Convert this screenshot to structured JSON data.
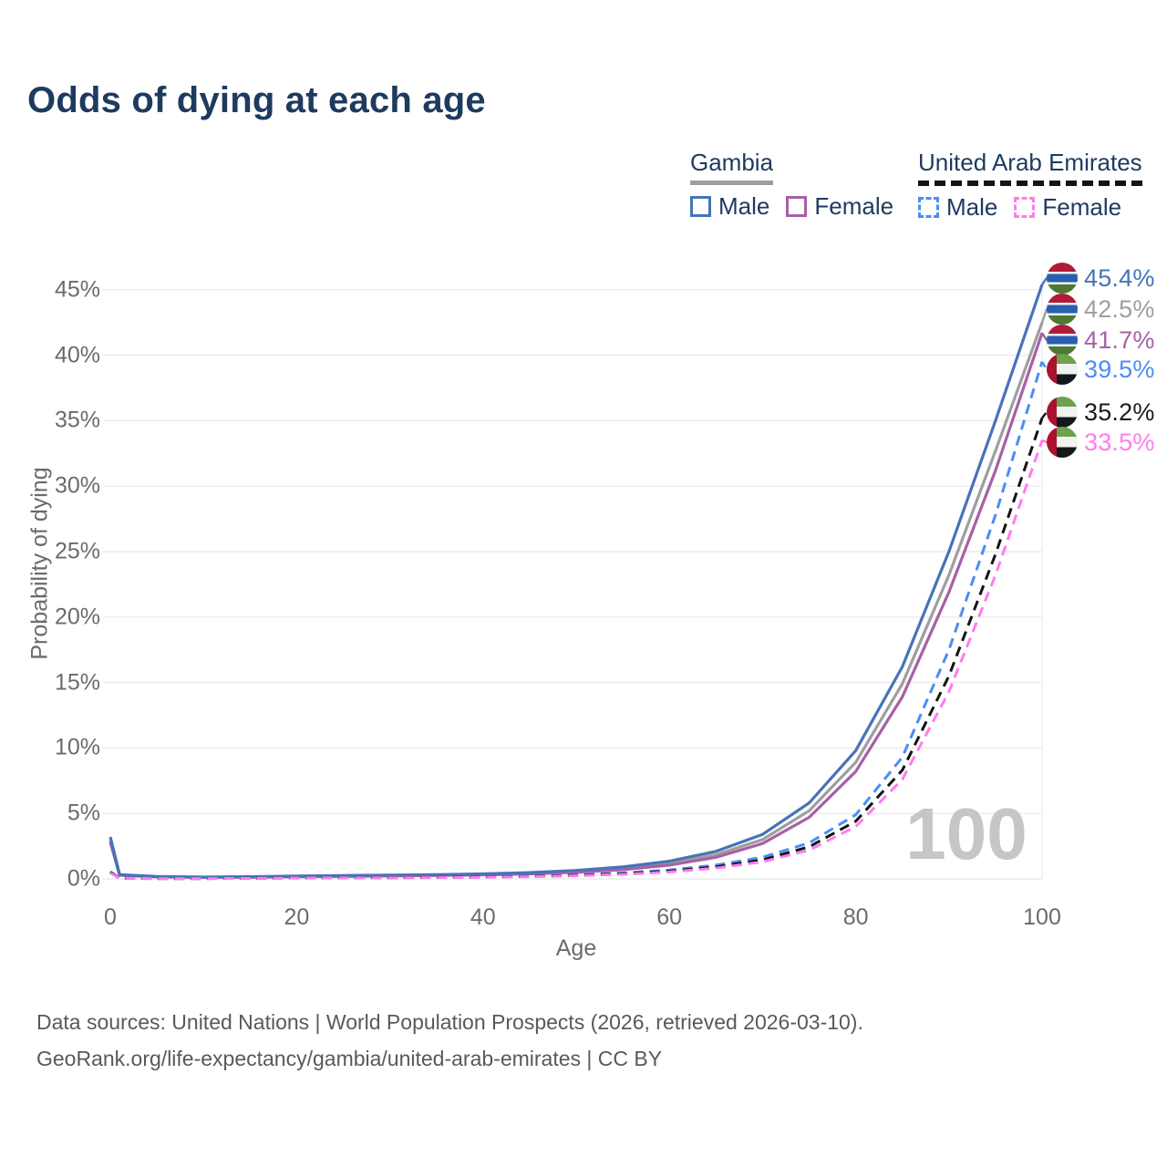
{
  "title": "Odds of dying at each age",
  "watermark": "100",
  "colors": {
    "title_navy": "#1e3a5f",
    "axis_gray": "#6b6b6b",
    "grid_gray": "#ebebeb",
    "watermark_gray": "#c6c6c6",
    "footer_gray": "#595959",
    "gambia_male_blue": "#4673b8",
    "gambia_both_gray": "#9e9e9e",
    "gambia_female_purple": "#a661a6",
    "uae_male_blue": "#4a8df5",
    "uae_both_black": "#141414",
    "uae_female_pink": "#ff7bee"
  },
  "legend": {
    "groups": [
      {
        "name": "Gambia",
        "underline_style": "solid",
        "underline_color": "#9e9e9e",
        "items": [
          {
            "label": "Male",
            "swatch_style": "solid",
            "color": "#4673b8"
          },
          {
            "label": "Female",
            "swatch_style": "solid",
            "color": "#a661a6"
          }
        ]
      },
      {
        "name": "United Arab Emirates",
        "underline_style": "dashed",
        "underline_color": "#141414",
        "items": [
          {
            "label": "Male",
            "swatch_style": "dashed",
            "color": "#4a8df5"
          },
          {
            "label": "Female",
            "swatch_style": "dashed",
            "color": "#ff7bee"
          }
        ]
      }
    ]
  },
  "axes": {
    "x_label": "Age",
    "y_label": "Probability of dying",
    "x_ticks": [
      0,
      20,
      40,
      60,
      80,
      100
    ],
    "y_tick_labels": [
      "0%",
      "5%",
      "10%",
      "15%",
      "20%",
      "25%",
      "30%",
      "35%",
      "40%",
      "45%"
    ]
  },
  "end_labels": [
    {
      "text": "45.4%",
      "flag": "gambia",
      "color": "#4673b8"
    },
    {
      "text": "42.5%",
      "flag": "gambia",
      "color": "#9e9e9e"
    },
    {
      "text": "41.7%",
      "flag": "gambia",
      "color": "#a661a6"
    },
    {
      "text": "39.5%",
      "flag": "uae",
      "color": "#4a8df5"
    },
    {
      "text": "35.2%",
      "flag": "uae",
      "color": "#1a1a1a"
    },
    {
      "text": "33.5%",
      "flag": "uae",
      "color": "#ff7bee"
    }
  ],
  "footer": {
    "line1": "Data sources: United Nations | World Population Prospects (2026, retrieved 2026-03-10).",
    "line2": "GeoRank.org/life-expectancy/gambia/united-arab-emirates | CC BY"
  },
  "chart_data": {
    "type": "line",
    "title": "Odds of dying at each age",
    "xlabel": "Age",
    "ylabel": "Probability of dying",
    "unit": "percent",
    "xlim": [
      0,
      100
    ],
    "ylim": [
      0,
      45
    ],
    "grid": "horizontal",
    "legend_position": "top-right",
    "x": [
      0,
      1,
      5,
      10,
      15,
      20,
      25,
      30,
      35,
      40,
      45,
      50,
      55,
      60,
      65,
      70,
      75,
      80,
      85,
      90,
      95,
      100
    ],
    "series": [
      {
        "name": "Gambia — Male",
        "color": "#4673b8",
        "dash": false,
        "end_value": 45.4,
        "values": [
          3.2,
          0.33,
          0.18,
          0.14,
          0.17,
          0.22,
          0.26,
          0.29,
          0.33,
          0.38,
          0.48,
          0.65,
          0.92,
          1.35,
          2.1,
          3.4,
          5.8,
          9.8,
          16.2,
          25.0,
          35.0,
          45.4
        ]
      },
      {
        "name": "Gambia — Both sexes",
        "color": "#9e9e9e",
        "dash": false,
        "end_value": 42.5,
        "values": [
          3.0,
          0.3,
          0.16,
          0.13,
          0.15,
          0.19,
          0.22,
          0.25,
          0.29,
          0.34,
          0.43,
          0.57,
          0.8,
          1.18,
          1.85,
          3.0,
          5.2,
          8.9,
          14.9,
          23.2,
          32.7,
          42.5
        ]
      },
      {
        "name": "Gambia — Female",
        "color": "#a661a6",
        "dash": false,
        "end_value": 41.7,
        "values": [
          2.8,
          0.28,
          0.15,
          0.12,
          0.13,
          0.16,
          0.19,
          0.22,
          0.26,
          0.3,
          0.38,
          0.5,
          0.7,
          1.05,
          1.65,
          2.7,
          4.7,
          8.2,
          13.9,
          21.9,
          31.2,
          41.7
        ]
      },
      {
        "name": "United Arab Emirates — Male",
        "color": "#4a8df5",
        "dash": true,
        "end_value": 39.5,
        "values": [
          0.55,
          0.05,
          0.03,
          0.03,
          0.06,
          0.08,
          0.09,
          0.1,
          0.12,
          0.15,
          0.21,
          0.3,
          0.45,
          0.68,
          1.05,
          1.65,
          2.75,
          4.9,
          9.3,
          17.5,
          27.8,
          39.5
        ]
      },
      {
        "name": "United Arab Emirates — Both sexes",
        "color": "#141414",
        "dash": true,
        "end_value": 35.2,
        "values": [
          0.5,
          0.045,
          0.03,
          0.03,
          0.05,
          0.07,
          0.08,
          0.09,
          0.11,
          0.14,
          0.19,
          0.27,
          0.4,
          0.6,
          0.92,
          1.45,
          2.45,
          4.4,
          8.3,
          15.5,
          24.8,
          35.2
        ]
      },
      {
        "name": "United Arab Emirates — Female",
        "color": "#ff7bee",
        "dash": true,
        "end_value": 33.5,
        "values": [
          0.45,
          0.04,
          0.025,
          0.025,
          0.04,
          0.06,
          0.07,
          0.08,
          0.1,
          0.12,
          0.17,
          0.24,
          0.35,
          0.53,
          0.82,
          1.3,
          2.2,
          4.0,
          7.6,
          14.3,
          23.2,
          33.5
        ]
      }
    ]
  }
}
